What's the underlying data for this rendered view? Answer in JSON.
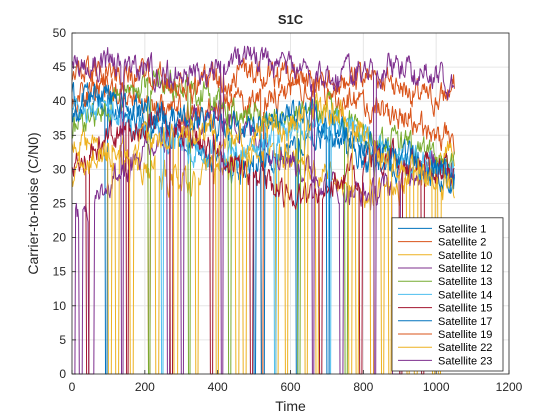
{
  "chart_data": {
    "type": "line",
    "title": "S1C",
    "xlabel": "Time",
    "ylabel": "Carrier-to-noise (C/N0)",
    "xlim": [
      0,
      1200
    ],
    "ylim": [
      0,
      50
    ],
    "xticks": [
      "0",
      "200",
      "400",
      "600",
      "800",
      "1000",
      "1200"
    ],
    "yticks": [
      "0",
      "5",
      "10",
      "15",
      "20",
      "25",
      "30",
      "35",
      "40",
      "45",
      "50"
    ],
    "grid": true,
    "legend": "bottom-right",
    "n_samples": 1050,
    "series": [
      {
        "name": "Satellite 1",
        "color": "#0072BD",
        "x": [
          0,
          60,
          150,
          250,
          330,
          400,
          480,
          560,
          640,
          700,
          760,
          820,
          880,
          940,
          1000,
          1050
        ],
        "y": [
          37,
          40,
          38,
          36,
          33,
          31,
          30,
          32,
          34,
          35,
          33,
          31,
          30,
          31,
          29,
          28
        ],
        "dropouts": [
          [
            92,
            96
          ],
          [
            500,
            505
          ],
          [
            615,
            620
          ]
        ]
      },
      {
        "name": "Satellite 2",
        "color": "#D95319",
        "x": [
          0,
          60,
          150,
          250,
          330,
          400,
          480,
          560,
          640,
          700,
          760,
          820,
          880,
          940,
          1000,
          1050
        ],
        "y": [
          40,
          42,
          41,
          39,
          38,
          39,
          40,
          41,
          42,
          41,
          40,
          39,
          38,
          37,
          35,
          34
        ],
        "dropouts": [
          [
            210,
            214
          ],
          [
            520,
            524
          ]
        ]
      },
      {
        "name": "Satellite 10",
        "color": "#EDB120",
        "x": [
          0,
          60,
          150,
          250,
          330,
          400,
          480,
          560,
          640,
          700,
          760,
          820,
          880,
          940,
          1000,
          1050
        ],
        "y": [
          34,
          33,
          31,
          29,
          28,
          30,
          32,
          33,
          31,
          29,
          27,
          26,
          27,
          29,
          31,
          32
        ],
        "dropouts": [
          [
            120,
            128
          ],
          [
            230,
            238
          ],
          [
            340,
            346
          ],
          [
            450,
            458
          ],
          [
            560,
            566
          ],
          [
            670,
            676
          ],
          [
            780,
            786
          ],
          [
            850,
            856
          ],
          [
            920,
            926
          ],
          [
            990,
            996
          ]
        ]
      },
      {
        "name": "Satellite 12",
        "color": "#7E2F8E",
        "x": [
          0,
          60,
          150,
          250,
          330,
          400,
          480,
          560,
          640,
          700,
          760,
          820,
          880,
          940,
          1000,
          1050
        ],
        "y": [
          23,
          26,
          30,
          34,
          37,
          38,
          36,
          33,
          30,
          28,
          27,
          26,
          28,
          30,
          31,
          30
        ],
        "dropouts": [
          [
            0,
            8
          ],
          [
            20,
            28
          ],
          [
            45,
            60
          ],
          [
            262,
            268
          ],
          [
            300,
            306
          ],
          [
            735,
            745
          ],
          [
            880,
            900
          ]
        ]
      },
      {
        "name": "Satellite 13",
        "color": "#77AC30",
        "x": [
          0,
          60,
          150,
          250,
          330,
          400,
          480,
          560,
          640,
          700,
          760,
          820,
          880,
          940,
          1000,
          1050
        ],
        "y": [
          36,
          38,
          41,
          43,
          42,
          40,
          38,
          37,
          38,
          39,
          37,
          35,
          34,
          33,
          32,
          31
        ],
        "dropouts": [
          [
            210,
            215
          ],
          [
            320,
            325
          ],
          [
            430,
            436
          ],
          [
            620,
            626
          ],
          [
            750,
            756
          ]
        ]
      },
      {
        "name": "Satellite 14",
        "color": "#4DBEEE",
        "x": [
          0,
          60,
          150,
          250,
          330,
          400,
          480,
          560,
          640,
          700,
          760,
          820,
          880,
          940,
          1000,
          1050
        ],
        "y": [
          38,
          39,
          37,
          35,
          33,
          32,
          33,
          35,
          36,
          37,
          36,
          34,
          32,
          31,
          30,
          30
        ],
        "dropouts": [
          [
            245,
            250
          ],
          [
            555,
            560
          ],
          [
            705,
            710
          ]
        ]
      },
      {
        "name": "Satellite 15",
        "color": "#A2142F",
        "x": [
          0,
          60,
          150,
          250,
          330,
          400,
          480,
          560,
          640,
          700,
          760,
          820,
          880,
          940,
          1000,
          1050
        ],
        "y": [
          30,
          33,
          36,
          37,
          35,
          32,
          29,
          27,
          26,
          27,
          29,
          31,
          32,
          31,
          30,
          29
        ],
        "dropouts": [
          [
            40,
            46
          ],
          [
            150,
            155
          ],
          [
            270,
            276
          ],
          [
            380,
            386
          ],
          [
            490,
            496
          ],
          [
            680,
            686
          ],
          [
            790,
            796
          ],
          [
            900,
            906
          ],
          [
            960,
            966
          ]
        ]
      },
      {
        "name": "Satellite 17",
        "color": "#0072BD",
        "x": [
          0,
          60,
          150,
          250,
          330,
          400,
          480,
          560,
          640,
          700,
          760,
          820,
          880,
          940,
          1000,
          1050
        ],
        "y": [
          40,
          41,
          40,
          38,
          37,
          36,
          36,
          37,
          38,
          37,
          35,
          33,
          32,
          31,
          30,
          29
        ],
        "dropouts": [
          [
            520,
            528
          ],
          [
            700,
            706
          ]
        ]
      },
      {
        "name": "Satellite 19",
        "color": "#D95319",
        "x": [
          0,
          60,
          150,
          250,
          330,
          400,
          480,
          560,
          640,
          700,
          760,
          820,
          880,
          940,
          1000,
          1050
        ],
        "y": [
          44,
          45,
          44,
          43,
          42,
          43,
          44,
          44,
          43,
          42,
          43,
          44,
          43,
          41,
          40,
          42
        ],
        "dropouts": []
      },
      {
        "name": "Satellite 22",
        "color": "#EDB120",
        "x": [
          0,
          60,
          150,
          250,
          330,
          400,
          480,
          560,
          640,
          700,
          760,
          820,
          880,
          940,
          1000,
          1050
        ],
        "y": [
          29,
          31,
          33,
          35,
          36,
          35,
          34,
          36,
          38,
          39,
          37,
          34,
          31,
          29,
          28,
          27
        ],
        "dropouts": [
          [
            100,
            108
          ],
          [
            160,
            168
          ],
          [
            280,
            290
          ],
          [
            395,
            403
          ],
          [
            470,
            478
          ],
          [
            585,
            593
          ],
          [
            640,
            646
          ],
          [
            760,
            768
          ],
          [
            820,
            828
          ],
          [
            870,
            876
          ],
          [
            940,
            948
          ],
          [
            1005,
            1012
          ]
        ]
      },
      {
        "name": "Satellite 23",
        "color": "#7E2F8E",
        "x": [
          0,
          60,
          150,
          250,
          330,
          400,
          480,
          560,
          640,
          700,
          760,
          820,
          880,
          940,
          1000,
          1050
        ],
        "y": [
          45,
          46,
          45,
          44,
          44,
          45,
          46,
          45,
          44,
          43,
          44,
          45,
          45,
          44,
          44,
          43
        ],
        "dropouts": [
          [
            135,
            140
          ],
          [
            410,
            415
          ],
          [
            660,
            665
          ],
          [
            830,
            835
          ]
        ]
      }
    ]
  }
}
